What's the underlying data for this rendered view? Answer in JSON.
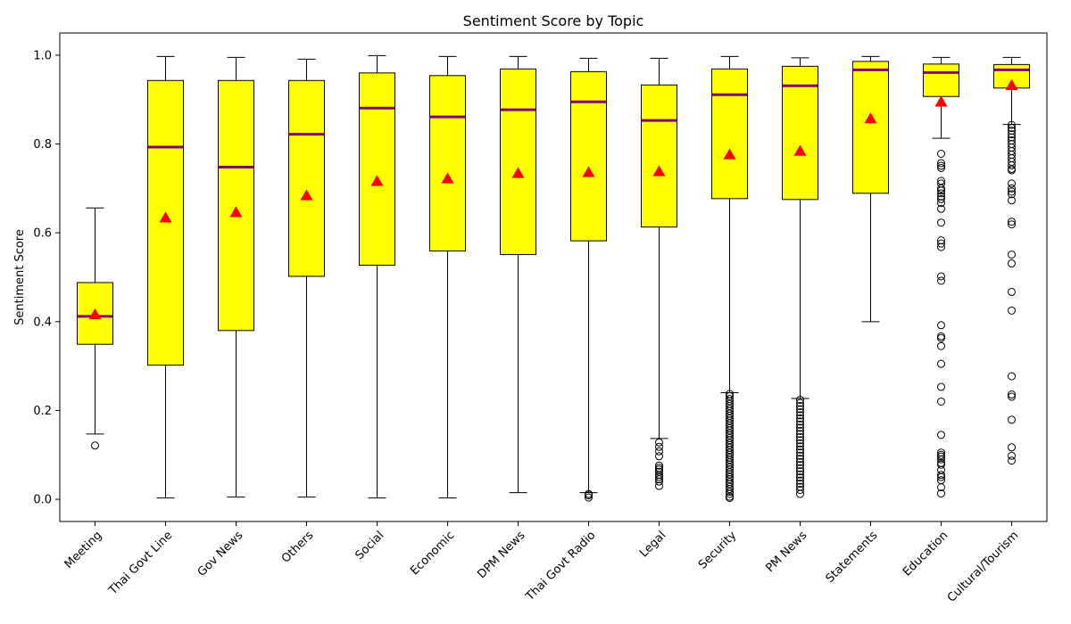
{
  "chart_data": {
    "type": "box",
    "title": "Sentiment Score by Topic",
    "xlabel": "",
    "ylabel": "Sentiment Score",
    "ylim": [
      -0.05,
      1.05
    ],
    "yticks": [
      0.0,
      0.2,
      0.4,
      0.6,
      0.8,
      1.0
    ],
    "ytick_labels": [
      "0.0",
      "0.2",
      "0.4",
      "0.6",
      "0.8",
      "1.0"
    ],
    "grid": false,
    "legend": "none",
    "colors": {
      "box_fill": "#ffff00",
      "median": "#800080",
      "mean_marker": "#ff0000",
      "outline": "#000000"
    },
    "categories": [
      "Meeting",
      "Thai Govt Line",
      "Gov News",
      "Others",
      "Social",
      "Economic",
      "DPM News",
      "Thai Govt Radio",
      "Legal",
      "Security",
      "PM News",
      "Statements",
      "Education",
      "Cultural/Tourism"
    ],
    "boxes": [
      {
        "whisker_low": 0.147,
        "q1": 0.349,
        "median": 0.412,
        "q3": 0.488,
        "whisker_high": 0.656,
        "mean": 0.416,
        "outliers": [
          0.121
        ]
      },
      {
        "whisker_low": 0.003,
        "q1": 0.302,
        "median": 0.793,
        "q3": 0.943,
        "whisker_high": 0.997,
        "mean": 0.634,
        "outliers": []
      },
      {
        "whisker_low": 0.005,
        "q1": 0.38,
        "median": 0.748,
        "q3": 0.943,
        "whisker_high": 0.995,
        "mean": 0.646,
        "outliers": []
      },
      {
        "whisker_low": 0.005,
        "q1": 0.502,
        "median": 0.822,
        "q3": 0.943,
        "whisker_high": 0.991,
        "mean": 0.684,
        "outliers": []
      },
      {
        "whisker_low": 0.003,
        "q1": 0.527,
        "median": 0.881,
        "q3": 0.96,
        "whisker_high": 0.999,
        "mean": 0.716,
        "outliers": []
      },
      {
        "whisker_low": 0.003,
        "q1": 0.559,
        "median": 0.861,
        "q3": 0.954,
        "whisker_high": 0.997,
        "mean": 0.722,
        "outliers": []
      },
      {
        "whisker_low": 0.015,
        "q1": 0.551,
        "median": 0.877,
        "q3": 0.969,
        "whisker_high": 0.997,
        "mean": 0.734,
        "outliers": []
      },
      {
        "whisker_low": 0.015,
        "q1": 0.582,
        "median": 0.895,
        "q3": 0.963,
        "whisker_high": 0.993,
        "mean": 0.736,
        "outliers": [
          0.012,
          0.009,
          0.004
        ]
      },
      {
        "whisker_low": 0.137,
        "q1": 0.613,
        "median": 0.853,
        "q3": 0.933,
        "whisker_high": 0.993,
        "mean": 0.738,
        "outliers": [
          0.128,
          0.118,
          0.108,
          0.097,
          0.076,
          0.071,
          0.067,
          0.062,
          0.055,
          0.05,
          0.045,
          0.04,
          0.03
        ]
      },
      {
        "whisker_low": 0.24,
        "q1": 0.677,
        "median": 0.911,
        "q3": 0.969,
        "whisker_high": 0.997,
        "mean": 0.776,
        "outliers": [
          0.237,
          0.232,
          0.226,
          0.221,
          0.215,
          0.21,
          0.204,
          0.199,
          0.193,
          0.188,
          0.182,
          0.177,
          0.171,
          0.166,
          0.16,
          0.155,
          0.149,
          0.144,
          0.138,
          0.133,
          0.127,
          0.122,
          0.116,
          0.111,
          0.105,
          0.1,
          0.094,
          0.089,
          0.083,
          0.078,
          0.072,
          0.067,
          0.061,
          0.056,
          0.05,
          0.045,
          0.039,
          0.034,
          0.028,
          0.023,
          0.017,
          0.012,
          0.006,
          0.003
        ]
      },
      {
        "whisker_low": 0.227,
        "q1": 0.675,
        "median": 0.931,
        "q3": 0.975,
        "whisker_high": 0.994,
        "mean": 0.784,
        "outliers": [
          0.224,
          0.217,
          0.21,
          0.203,
          0.196,
          0.189,
          0.182,
          0.175,
          0.168,
          0.161,
          0.154,
          0.147,
          0.14,
          0.133,
          0.126,
          0.119,
          0.112,
          0.105,
          0.098,
          0.091,
          0.084,
          0.077,
          0.07,
          0.063,
          0.056,
          0.049,
          0.042,
          0.035,
          0.028,
          0.021,
          0.012
        ]
      },
      {
        "whisker_low": 0.4,
        "q1": 0.689,
        "median": 0.967,
        "q3": 0.986,
        "whisker_high": 0.997,
        "mean": 0.857,
        "outliers": []
      },
      {
        "whisker_low": 0.813,
        "q1": 0.907,
        "median": 0.961,
        "q3": 0.98,
        "whisker_high": 0.995,
        "mean": 0.895,
        "outliers": [
          0.778,
          0.757,
          0.751,
          0.746,
          0.717,
          0.711,
          0.7,
          0.695,
          0.689,
          0.682,
          0.676,
          0.667,
          0.654,
          0.623,
          0.583,
          0.576,
          0.568,
          0.502,
          0.492,
          0.392,
          0.367,
          0.363,
          0.345,
          0.305,
          0.253,
          0.22,
          0.145,
          0.105,
          0.1,
          0.096,
          0.09,
          0.082,
          0.078,
          0.066,
          0.055,
          0.05,
          0.043,
          0.027,
          0.013
        ]
      },
      {
        "whisker_low": 0.844,
        "q1": 0.926,
        "median": 0.967,
        "q3": 0.979,
        "whisker_high": 0.995,
        "mean": 0.932,
        "outliers": [
          0.843,
          0.836,
          0.83,
          0.822,
          0.815,
          0.808,
          0.8,
          0.792,
          0.784,
          0.776,
          0.768,
          0.76,
          0.752,
          0.744,
          0.741,
          0.711,
          0.7,
          0.693,
          0.687,
          0.673,
          0.625,
          0.619,
          0.551,
          0.531,
          0.467,
          0.425,
          0.277,
          0.236,
          0.231,
          0.179,
          0.117,
          0.098,
          0.087
        ]
      }
    ]
  }
}
